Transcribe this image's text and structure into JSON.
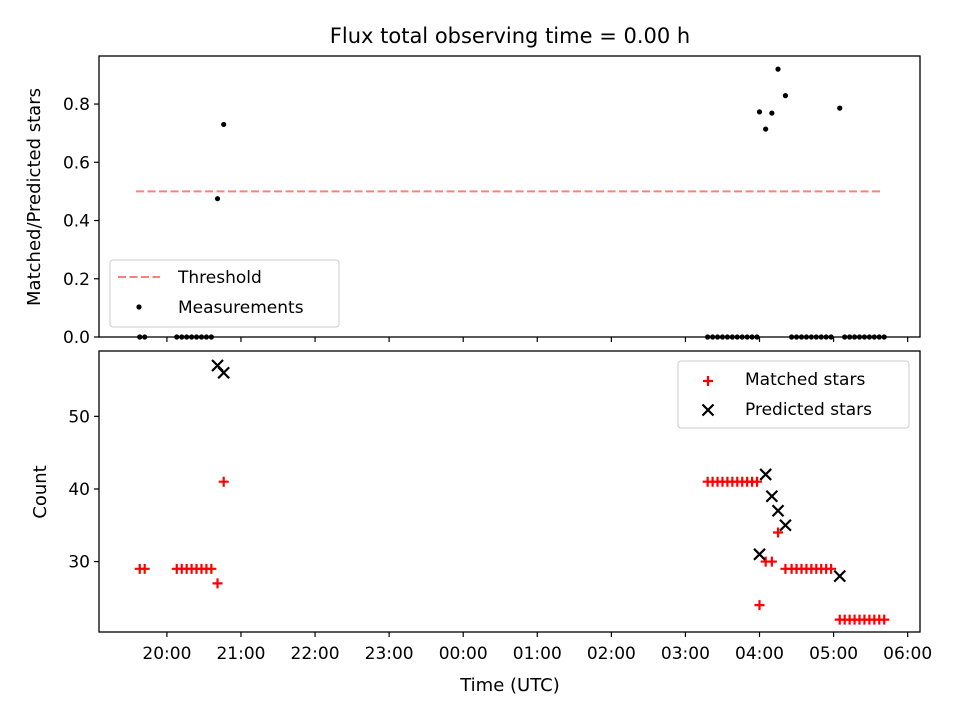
{
  "title": "Flux total observing time = 0.00 h",
  "chart_data": [
    {
      "type": "scatter",
      "ylabel": "Matched/Predicted stars",
      "ylim": [
        0,
        0.965
      ],
      "yticks": [
        0.0,
        0.2,
        0.4,
        0.6,
        0.8
      ],
      "ytick_labels": [
        "0.0",
        "0.2",
        "0.4",
        "0.6",
        "0.8"
      ],
      "xlim": [
        "19:05",
        "06:10"
      ],
      "grid": false,
      "legend_position": "lower-left",
      "threshold": {
        "name": "Threshold",
        "value": 0.5,
        "x_range": [
          "19:35",
          "05:39"
        ],
        "color": "#ff7f7f"
      },
      "series": [
        {
          "name": "Measurements",
          "marker": "dot",
          "color": "#000000",
          "points": [
            [
              "19:38",
              0
            ],
            [
              "19:42",
              0
            ],
            [
              "20:08",
              0
            ],
            [
              "20:12",
              0
            ],
            [
              "20:16",
              0
            ],
            [
              "20:20",
              0
            ],
            [
              "20:24",
              0
            ],
            [
              "20:28",
              0
            ],
            [
              "20:32",
              0
            ],
            [
              "20:36",
              0
            ],
            [
              "20:41",
              0.475
            ],
            [
              "20:46",
              0.73
            ],
            [
              "03:18",
              0
            ],
            [
              "03:22",
              0
            ],
            [
              "03:26",
              0
            ],
            [
              "03:30",
              0
            ],
            [
              "03:34",
              0
            ],
            [
              "03:38",
              0
            ],
            [
              "03:42",
              0
            ],
            [
              "03:46",
              0
            ],
            [
              "03:50",
              0
            ],
            [
              "03:54",
              0
            ],
            [
              "03:58",
              0
            ],
            [
              "04:00",
              0.773
            ],
            [
              "04:05",
              0.714
            ],
            [
              "04:10",
              0.769
            ],
            [
              "04:15",
              0.92
            ],
            [
              "04:21",
              0.829
            ],
            [
              "04:26",
              0
            ],
            [
              "04:30",
              0
            ],
            [
              "04:34",
              0
            ],
            [
              "04:38",
              0
            ],
            [
              "04:42",
              0
            ],
            [
              "04:46",
              0
            ],
            [
              "04:50",
              0
            ],
            [
              "04:54",
              0
            ],
            [
              "04:58",
              0
            ],
            [
              "05:05",
              0.786
            ],
            [
              "05:09",
              0
            ],
            [
              "05:13",
              0
            ],
            [
              "05:17",
              0
            ],
            [
              "05:21",
              0
            ],
            [
              "05:25",
              0
            ],
            [
              "05:29",
              0
            ],
            [
              "05:33",
              0
            ],
            [
              "05:37",
              0
            ],
            [
              "05:41",
              0
            ]
          ]
        }
      ]
    },
    {
      "type": "scatter",
      "xlabel": "Time (UTC)",
      "ylabel": "Count",
      "ylim": [
        20.3,
        59.0
      ],
      "yticks": [
        30,
        40,
        50
      ],
      "ytick_labels": [
        "30",
        "40",
        "50"
      ],
      "xlim": [
        "19:05",
        "06:10"
      ],
      "xticks": [
        "20:00",
        "21:00",
        "22:00",
        "23:00",
        "00:00",
        "01:00",
        "02:00",
        "03:00",
        "04:00",
        "05:00",
        "06:00"
      ],
      "grid": false,
      "legend_position": "upper-right",
      "series": [
        {
          "name": "Matched stars",
          "marker": "plus",
          "color": "#ff0000",
          "points": [
            [
              "19:38",
              29
            ],
            [
              "19:42",
              29
            ],
            [
              "20:08",
              29
            ],
            [
              "20:12",
              29
            ],
            [
              "20:16",
              29
            ],
            [
              "20:20",
              29
            ],
            [
              "20:24",
              29
            ],
            [
              "20:28",
              29
            ],
            [
              "20:32",
              29
            ],
            [
              "20:36",
              29
            ],
            [
              "20:41",
              27
            ],
            [
              "20:46",
              41
            ],
            [
              "03:18",
              41
            ],
            [
              "03:22",
              41
            ],
            [
              "03:26",
              41
            ],
            [
              "03:30",
              41
            ],
            [
              "03:34",
              41
            ],
            [
              "03:38",
              41
            ],
            [
              "03:42",
              41
            ],
            [
              "03:46",
              41
            ],
            [
              "03:50",
              41
            ],
            [
              "03:54",
              41
            ],
            [
              "03:58",
              41
            ],
            [
              "04:00",
              24
            ],
            [
              "04:05",
              30
            ],
            [
              "04:10",
              30
            ],
            [
              "04:15",
              34
            ],
            [
              "04:21",
              29
            ],
            [
              "04:26",
              29
            ],
            [
              "04:30",
              29
            ],
            [
              "04:34",
              29
            ],
            [
              "04:38",
              29
            ],
            [
              "04:42",
              29
            ],
            [
              "04:46",
              29
            ],
            [
              "04:50",
              29
            ],
            [
              "04:54",
              29
            ],
            [
              "04:58",
              29
            ],
            [
              "05:05",
              22
            ],
            [
              "05:09",
              22
            ],
            [
              "05:13",
              22
            ],
            [
              "05:17",
              22
            ],
            [
              "05:21",
              22
            ],
            [
              "05:25",
              22
            ],
            [
              "05:29",
              22
            ],
            [
              "05:33",
              22
            ],
            [
              "05:37",
              22
            ],
            [
              "05:41",
              22
            ]
          ]
        },
        {
          "name": "Predicted stars",
          "marker": "x",
          "color": "#000000",
          "points": [
            [
              "20:41",
              57
            ],
            [
              "20:46",
              56
            ],
            [
              "04:00",
              31
            ],
            [
              "04:05",
              42
            ],
            [
              "04:10",
              39
            ],
            [
              "04:15",
              37
            ],
            [
              "04:21",
              35
            ],
            [
              "05:05",
              28
            ]
          ]
        }
      ]
    }
  ]
}
